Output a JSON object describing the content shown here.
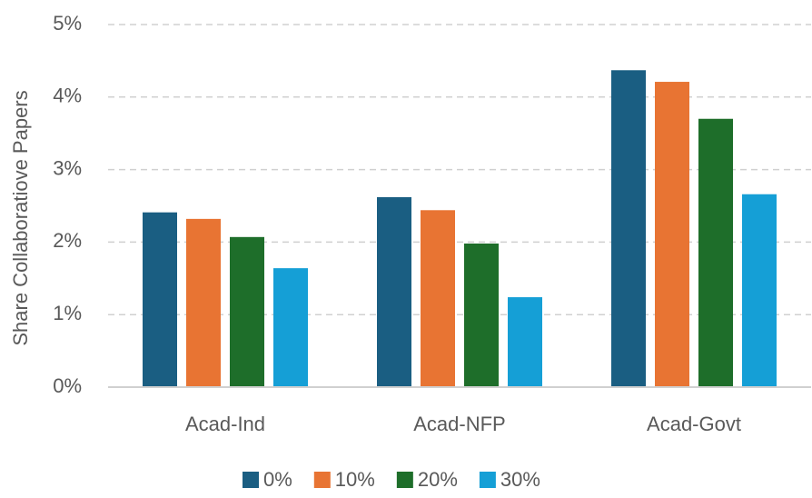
{
  "chart_data": {
    "type": "bar",
    "y_label": "Share Collaboratiove Papers",
    "categories": [
      "Acad-Ind",
      "Acad-NFP",
      "Acad-Govt"
    ],
    "series": [
      {
        "name": "0%",
        "color": "#1a5e82",
        "values": [
          2.41,
          2.62,
          4.37
        ]
      },
      {
        "name": "10%",
        "color": "#e87433",
        "values": [
          2.32,
          2.44,
          4.21
        ]
      },
      {
        "name": "20%",
        "color": "#1e6e2a",
        "values": [
          2.07,
          1.98,
          3.7
        ]
      },
      {
        "name": "30%",
        "color": "#159fd6",
        "values": [
          1.64,
          1.24,
          2.66
        ]
      }
    ],
    "ylim": [
      0,
      5
    ],
    "yticks": [
      {
        "value": 0,
        "label": "0%"
      },
      {
        "value": 1,
        "label": "1%"
      },
      {
        "value": 2,
        "label": "2%"
      },
      {
        "value": 3,
        "label": "3%"
      },
      {
        "value": 4,
        "label": "4%"
      },
      {
        "value": 5,
        "label": "5%"
      }
    ],
    "grid": true,
    "legend": "bottom"
  }
}
